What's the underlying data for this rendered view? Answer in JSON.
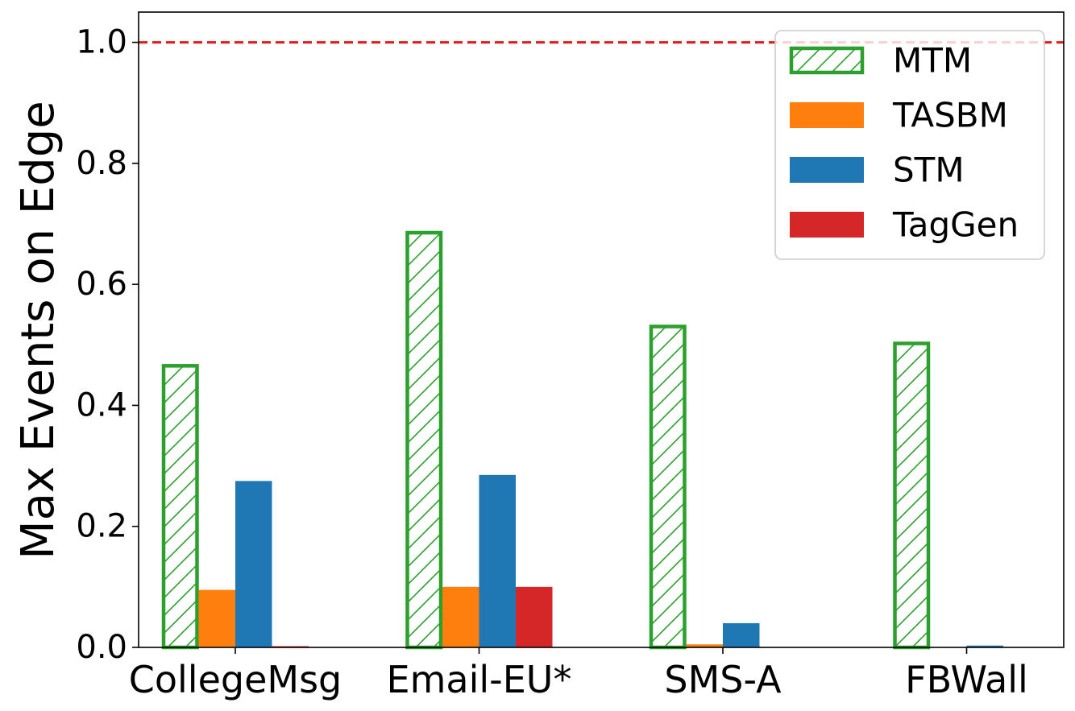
{
  "chart_data": {
    "type": "bar",
    "title": "",
    "xlabel": "",
    "ylabel": "Max Events on Edge",
    "ylim": [
      0,
      1.05
    ],
    "yticks": [
      0.0,
      0.2,
      0.4,
      0.6,
      0.8,
      1.0
    ],
    "ytick_labels": [
      "0.0",
      "0.2",
      "0.4",
      "0.6",
      "0.8",
      "1.0"
    ],
    "categories": [
      "CollegeMsg",
      "Email-EU*",
      "SMS-A",
      "FBWall"
    ],
    "series": [
      {
        "name": "MTM",
        "color": "#2ca02c",
        "style": "hatched-outline",
        "values": [
          0.468,
          0.688,
          0.533,
          0.505
        ]
      },
      {
        "name": "TASBM",
        "color": "#ff7f0e",
        "style": "solid",
        "values": [
          0.095,
          0.1,
          0.005,
          0.0
        ]
      },
      {
        "name": "STM",
        "color": "#1f77b4",
        "style": "solid",
        "values": [
          0.275,
          0.285,
          0.04,
          0.003
        ]
      },
      {
        "name": "TagGen",
        "color": "#d62728",
        "style": "solid",
        "values": [
          0.002,
          0.1,
          0.0,
          0.0
        ]
      }
    ],
    "reference_line": {
      "y": 1.0,
      "color": "#e31a1c",
      "style": "dashed"
    },
    "legend_position": "top-right",
    "grid": false
  }
}
